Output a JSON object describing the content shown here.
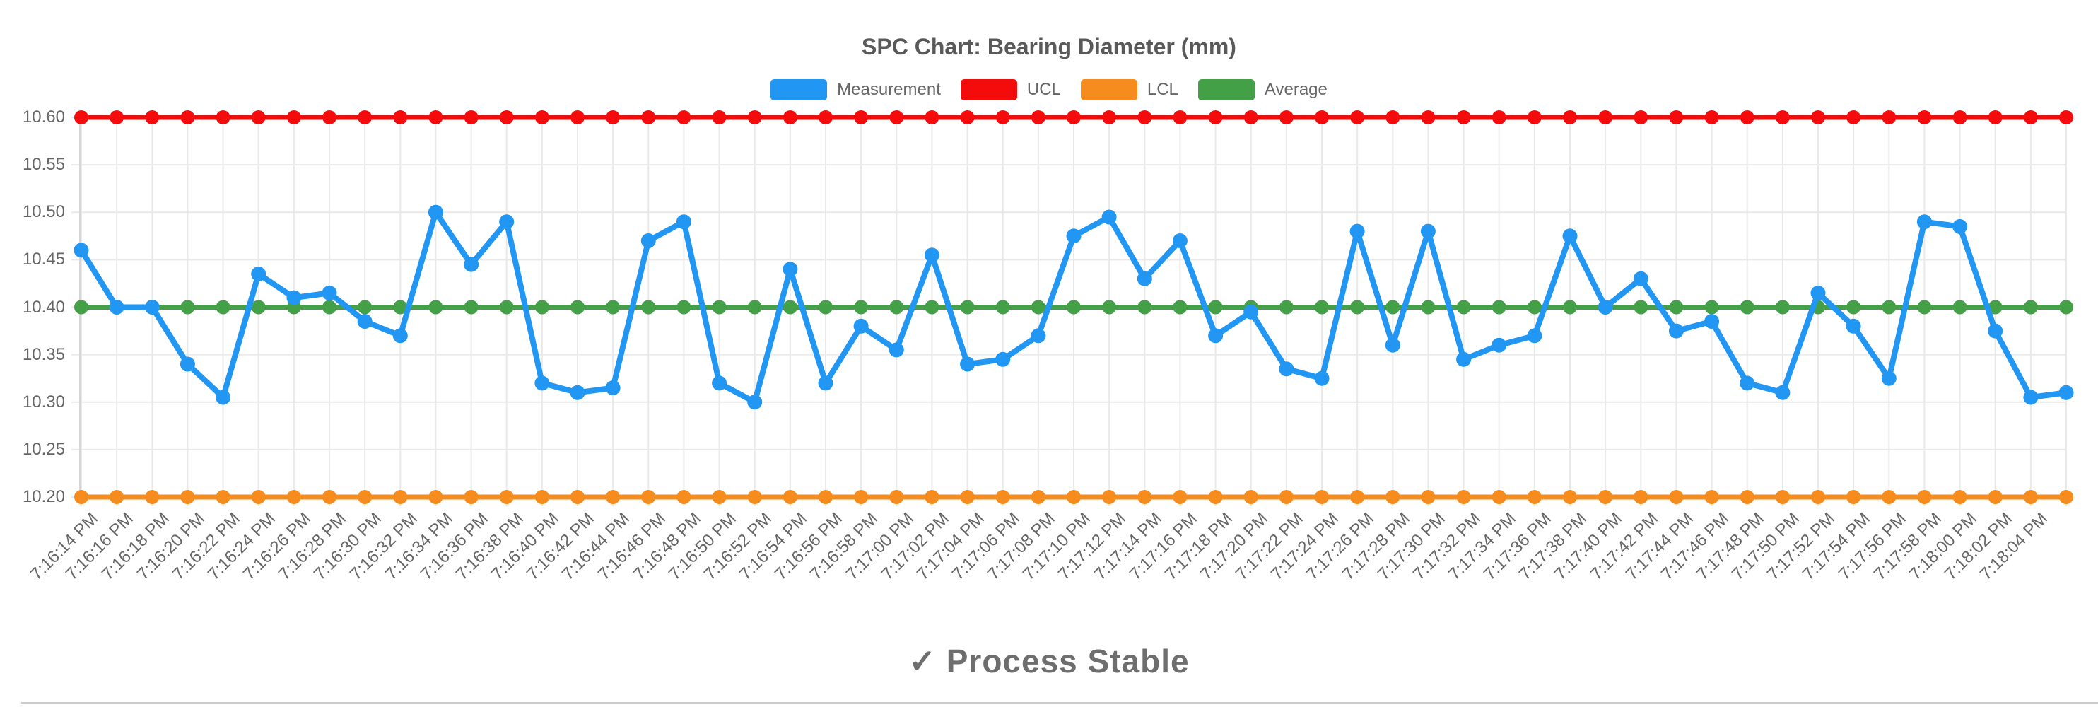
{
  "title": "SPC Chart: Bearing Diameter (mm)",
  "legend": {
    "items": [
      {
        "label": "Measurement",
        "color": "#2196F3"
      },
      {
        "label": "UCL",
        "color": "#F40B0B"
      },
      {
        "label": "LCL",
        "color": "#F78C1E"
      },
      {
        "label": "Average",
        "color": "#43A047"
      }
    ]
  },
  "status": {
    "icon": "✓",
    "text": "Process Stable",
    "color": "#6e6e6e"
  },
  "colors": {
    "grid": "#e9e9e9",
    "axis_border": "#d6d6d6",
    "tick": "#d0d0d0",
    "tick_text": "#666666",
    "title_text": "#595959",
    "divider": "#cdcdcd",
    "background": "#ffffff"
  },
  "chart_data": {
    "type": "line",
    "title": "SPC Chart: Bearing Diameter (mm)",
    "xlabel": "",
    "ylabel": "",
    "legend_position": "top",
    "grid": true,
    "ylim": [
      10.2,
      10.6
    ],
    "ytick_labels": [
      "10.60",
      "10.55",
      "10.50",
      "10.45",
      "10.40",
      "10.35",
      "10.30",
      "10.25",
      "10.20"
    ],
    "yticks": [
      10.6,
      10.55,
      10.5,
      10.45,
      10.4,
      10.35,
      10.3,
      10.25,
      10.2
    ],
    "categories": [
      "7:16:14 PM",
      "7:16:16 PM",
      "7:16:18 PM",
      "7:16:20 PM",
      "7:16:22 PM",
      "7:16:24 PM",
      "7:16:26 PM",
      "7:16:28 PM",
      "7:16:30 PM",
      "7:16:32 PM",
      "7:16:34 PM",
      "7:16:36 PM",
      "7:16:38 PM",
      "7:16:40 PM",
      "7:16:42 PM",
      "7:16:44 PM",
      "7:16:46 PM",
      "7:16:48 PM",
      "7:16:50 PM",
      "7:16:52 PM",
      "7:16:54 PM",
      "7:16:56 PM",
      "7:16:58 PM",
      "7:17:00 PM",
      "7:17:02 PM",
      "7:17:04 PM",
      "7:17:06 PM",
      "7:17:08 PM",
      "7:17:10 PM",
      "7:17:12 PM",
      "7:17:14 PM",
      "7:17:16 PM",
      "7:17:18 PM",
      "7:17:20 PM",
      "7:17:22 PM",
      "7:17:24 PM",
      "7:17:26 PM",
      "7:17:28 PM",
      "7:17:30 PM",
      "7:17:32 PM",
      "7:17:34 PM",
      "7:17:36 PM",
      "7:17:38 PM",
      "7:17:40 PM",
      "7:17:42 PM",
      "7:17:44 PM",
      "7:17:46 PM",
      "7:17:48 PM",
      "7:17:50 PM",
      "7:17:52 PM",
      "7:17:54 PM",
      "7:17:56 PM",
      "7:17:58 PM",
      "7:18:00 PM",
      "7:18:02 PM",
      "7:18:04 PM",
      ""
    ],
    "series": [
      {
        "name": "Measurement",
        "color": "#2196F3",
        "values": [
          10.46,
          10.4,
          10.4,
          10.34,
          10.305,
          10.435,
          10.41,
          10.415,
          10.385,
          10.37,
          10.5,
          10.445,
          10.49,
          10.32,
          10.31,
          10.315,
          10.47,
          10.49,
          10.32,
          10.3,
          10.44,
          10.32,
          10.38,
          10.355,
          10.455,
          10.34,
          10.345,
          10.37,
          10.475,
          10.495,
          10.43,
          10.47,
          10.37,
          10.395,
          10.335,
          10.325,
          10.48,
          10.36,
          10.48,
          10.345,
          10.36,
          10.37,
          10.475,
          10.4,
          10.43,
          10.375,
          10.385,
          10.32,
          10.31,
          10.415,
          10.38,
          10.325,
          10.49,
          10.485,
          10.375,
          10.305,
          10.31
        ]
      },
      {
        "name": "UCL",
        "color": "#F40B0B",
        "constant": 10.6
      },
      {
        "name": "LCL",
        "color": "#F78C1E",
        "constant": 10.2
      },
      {
        "name": "Average",
        "color": "#43A047",
        "constant": 10.4
      }
    ]
  }
}
